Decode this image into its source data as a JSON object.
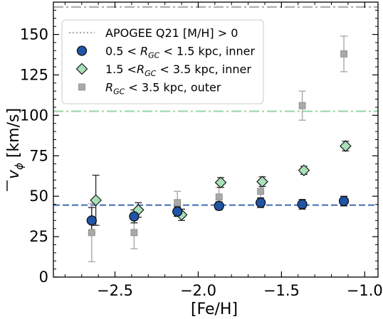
{
  "chart_data": {
    "type": "scatter",
    "xlabel": "[Fe/H]",
    "ylabel": "v̄_φ [km/s]",
    "ylabel_main": "v",
    "ylabel_sub": "ϕ",
    "ylabel_units": " [km/s]",
    "xlim": [
      -2.87,
      -0.92
    ],
    "ylim": [
      0,
      170
    ],
    "xticks": [
      -2.5,
      -2.0,
      -1.5,
      -1.0
    ],
    "xtick_labels": [
      "−2.5",
      "−2.0",
      "−1.5",
      "−1.0"
    ],
    "yticks": [
      0,
      25,
      50,
      75,
      100,
      125,
      150
    ],
    "ytick_labels": [
      "0",
      "25",
      "50",
      "75",
      "100",
      "125",
      "150"
    ],
    "grid": false,
    "legend_position": "top-left",
    "reference_lines": [
      {
        "y": 167,
        "color": "#aaaaaa",
        "style": "dashdot"
      },
      {
        "y": 102.5,
        "color": "#9fd8b0",
        "style": "dashdot"
      },
      {
        "y": 44.5,
        "color": "#4a74b8",
        "style": "dashed"
      }
    ],
    "series": [
      {
        "key": "outer",
        "marker": "square",
        "color": "#a9a9a9",
        "edge": "#888888",
        "err_color": "#a9a9a9",
        "x": [
          -2.64,
          -2.385,
          -2.125,
          -1.875,
          -1.625,
          -1.375,
          -1.125
        ],
        "y": [
          27.5,
          27.5,
          46,
          49.5,
          53,
          106,
          138
        ],
        "yerr_low": [
          18,
          10,
          8,
          6,
          6,
          9,
          11
        ],
        "yerr_high": [
          18,
          10,
          7,
          6,
          6,
          9,
          11
        ]
      },
      {
        "key": "inner_mid",
        "marker": "diamond",
        "color": "#a8e0b8",
        "edge": "#1a1a1a",
        "err_color": "#1a1a1a",
        "x": [
          -2.615,
          -2.36,
          -2.1,
          -1.865,
          -1.615,
          -1.365,
          -1.115
        ],
        "y": [
          47.5,
          41.5,
          38.5,
          58.5,
          59,
          66,
          81
        ],
        "yerr_low": [
          15.5,
          4.5,
          3.5,
          3,
          3,
          2.5,
          3
        ],
        "yerr_high": [
          15.5,
          4.5,
          3.5,
          3,
          3,
          2.5,
          3
        ]
      },
      {
        "key": "inner",
        "marker": "circle",
        "color": "#1f55a8",
        "edge": "#111111",
        "err_color": "#111111",
        "x": [
          -2.64,
          -2.385,
          -2.125,
          -1.875,
          -1.625,
          -1.375,
          -1.125
        ],
        "y": [
          35,
          37.5,
          40.5,
          44,
          46,
          45,
          47
        ],
        "yerr_low": [
          8,
          4,
          3,
          2.5,
          3,
          3,
          3
        ],
        "yerr_high": [
          8,
          4,
          3,
          2.5,
          3,
          3,
          3
        ]
      }
    ],
    "legend": [
      {
        "type": "line",
        "color": "#aaaaaa",
        "style": "dotted",
        "text": "APOGEE Q21 [M/H] > 0"
      },
      {
        "type": "marker",
        "series": "inner",
        "pre": "0.5 < ",
        "var": "R",
        "sub": "GC",
        "post": " < 1.5 kpc, inner"
      },
      {
        "type": "marker",
        "series": "inner_mid",
        "pre": "1.5 <",
        "var": "R",
        "sub": "GC",
        "post": " < 3.5 kpc, inner"
      },
      {
        "type": "marker",
        "series": "outer",
        "pre": "",
        "var": "R",
        "sub": "GC",
        "post": " < 3.5 kpc, outer"
      }
    ]
  }
}
